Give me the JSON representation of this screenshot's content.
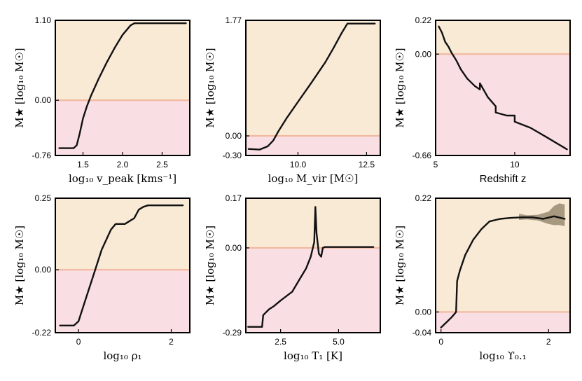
{
  "colors": {
    "above_zero": "#f9ead6",
    "below_zero": "#f9dfe4",
    "zero_line": "#f2b8a0",
    "curve": "#111111",
    "band": "#6f6346"
  },
  "chart_data": [
    {
      "type": "line",
      "id": "vpeak",
      "ylabel": "M★ [log₁₀ M☉]",
      "xlabel": "log₁₀ v_peak [kms⁻¹]",
      "xlim": [
        1.15,
        2.85
      ],
      "ylim": [
        -0.76,
        1.1
      ],
      "xticks": [
        1.5,
        2.0,
        2.5
      ],
      "xtick_labels": [
        "1.5",
        "2.0",
        "2.5"
      ],
      "yticks": [
        -0.76,
        0.0,
        1.1
      ],
      "ytick_labels": [
        "-0.76",
        "0.00",
        "1.10"
      ],
      "x": [
        1.2,
        1.38,
        1.42,
        1.46,
        1.5,
        1.55,
        1.6,
        1.7,
        1.8,
        1.9,
        2.0,
        2.1,
        2.15,
        2.2,
        2.5,
        2.8
      ],
      "y": [
        -0.66,
        -0.66,
        -0.62,
        -0.45,
        -0.25,
        -0.08,
        0.06,
        0.3,
        0.52,
        0.72,
        0.9,
        1.03,
        1.06,
        1.06,
        1.06,
        1.06
      ]
    },
    {
      "type": "line",
      "id": "mvir",
      "ylabel": "M★ [log₁₀ M☉]",
      "xlabel": "log₁₀ M_vir [M☉]",
      "xlim": [
        8.1,
        13.0
      ],
      "ylim": [
        -0.3,
        1.77
      ],
      "xticks": [
        10.0,
        12.5
      ],
      "xtick_labels": [
        "10.0",
        "12.5"
      ],
      "yticks": [
        -0.3,
        0.0,
        1.77
      ],
      "ytick_labels": [
        "-0.30",
        "0.00",
        "1.77"
      ],
      "x": [
        8.2,
        8.6,
        8.9,
        9.1,
        9.3,
        9.6,
        10.0,
        10.5,
        11.0,
        11.3,
        11.6,
        11.8,
        12.8
      ],
      "y": [
        -0.2,
        -0.21,
        -0.16,
        -0.07,
        0.08,
        0.28,
        0.52,
        0.82,
        1.13,
        1.35,
        1.58,
        1.72,
        1.72
      ]
    },
    {
      "type": "line",
      "id": "redshift",
      "ylabel": "M★ [log₁₀ M☉]",
      "xlabel": "Redshift z",
      "xlim": [
        5.0,
        13.5
      ],
      "ylim": [
        -0.66,
        0.22
      ],
      "xticks": [
        5,
        10
      ],
      "xtick_labels": [
        "5",
        "10"
      ],
      "yticks": [
        -0.66,
        0.0,
        0.22
      ],
      "ytick_labels": [
        "-0.66",
        "0.00",
        "0.22"
      ],
      "x": [
        5.2,
        5.4,
        5.6,
        5.8,
        6.0,
        6.3,
        6.6,
        7.0,
        7.5,
        7.8,
        7.8,
        8.3,
        8.8,
        8.8,
        9.5,
        10.0,
        10.0,
        11.0,
        12.0,
        13.3
      ],
      "y": [
        0.18,
        0.14,
        0.08,
        0.05,
        0.01,
        -0.04,
        -0.1,
        -0.16,
        -0.21,
        -0.23,
        -0.19,
        -0.28,
        -0.34,
        -0.38,
        -0.4,
        -0.4,
        -0.44,
        -0.48,
        -0.54,
        -0.62
      ]
    },
    {
      "type": "line",
      "id": "rho1",
      "ylabel": "M★ [log₁₀ M☉]",
      "xlabel": "log₁₀ ρ₁",
      "xlim": [
        -0.5,
        2.4
      ],
      "ylim": [
        -0.22,
        0.25
      ],
      "xticks": [
        0,
        2
      ],
      "xtick_labels": [
        "0",
        "2"
      ],
      "yticks": [
        -0.22,
        0.0,
        0.25
      ],
      "ytick_labels": [
        "-0.22",
        "0.00",
        "0.25"
      ],
      "x": [
        -0.4,
        -0.1,
        0.0,
        0.1,
        0.3,
        0.5,
        0.7,
        0.8,
        1.0,
        1.1,
        1.2,
        1.3,
        1.4,
        1.5,
        2.25
      ],
      "y": [
        -0.195,
        -0.195,
        -0.18,
        -0.13,
        -0.03,
        0.07,
        0.14,
        0.16,
        0.16,
        0.17,
        0.18,
        0.21,
        0.22,
        0.225,
        0.225
      ]
    },
    {
      "type": "line",
      "id": "t1",
      "ylabel": "M★ [log₁₀ M☉]",
      "xlabel": "log₁₀ T₁ [K]",
      "xlim": [
        1.0,
        6.8
      ],
      "ylim": [
        -0.29,
        0.17
      ],
      "xticks": [
        2.5,
        5.0
      ],
      "xtick_labels": [
        "2.5",
        "5.0"
      ],
      "yticks": [
        -0.29,
        0.0,
        0.17
      ],
      "ytick_labels": [
        "-0.29",
        "0.00",
        "0.17"
      ],
      "x": [
        1.1,
        1.7,
        1.75,
        2.0,
        2.2,
        2.5,
        3.0,
        3.3,
        3.6,
        3.8,
        3.95,
        4.0,
        4.05,
        4.15,
        4.25,
        4.32,
        4.4,
        4.6,
        6.5
      ],
      "y": [
        -0.27,
        -0.27,
        -0.23,
        -0.21,
        -0.2,
        -0.18,
        -0.15,
        -0.11,
        -0.07,
        -0.03,
        0.02,
        0.14,
        0.05,
        -0.02,
        -0.03,
        0.0,
        0.003,
        0.003,
        0.003
      ]
    },
    {
      "type": "line",
      "id": "upsilon",
      "ylabel": "M★ [log₁₀ M☉]",
      "xlabel": "log₁₀ ϒ₀.₁",
      "xlim": [
        -0.1,
        2.4
      ],
      "ylim": [
        -0.04,
        0.22
      ],
      "xticks": [
        0,
        2
      ],
      "xtick_labels": [
        "0",
        "2"
      ],
      "yticks": [
        -0.04,
        0.0,
        0.22
      ],
      "ytick_labels": [
        "-0.04",
        "0.00",
        "0.22"
      ],
      "x": [
        0.0,
        0.1,
        0.2,
        0.28,
        0.3,
        0.35,
        0.45,
        0.6,
        0.75,
        0.9,
        1.1,
        1.3,
        1.5,
        1.7,
        1.9,
        2.1,
        2.3
      ],
      "y": [
        -0.03,
        -0.02,
        -0.01,
        0.0,
        0.06,
        0.08,
        0.11,
        0.14,
        0.16,
        0.175,
        0.18,
        0.182,
        0.183,
        0.183,
        0.18,
        0.185,
        0.18
      ],
      "band_x": [
        1.45,
        1.6,
        1.8,
        2.0,
        2.1,
        2.2,
        2.3
      ],
      "band_lo": [
        0.178,
        0.179,
        0.177,
        0.17,
        0.168,
        0.168,
        0.166
      ],
      "band_hi": [
        0.19,
        0.187,
        0.188,
        0.194,
        0.205,
        0.21,
        0.208
      ]
    }
  ]
}
